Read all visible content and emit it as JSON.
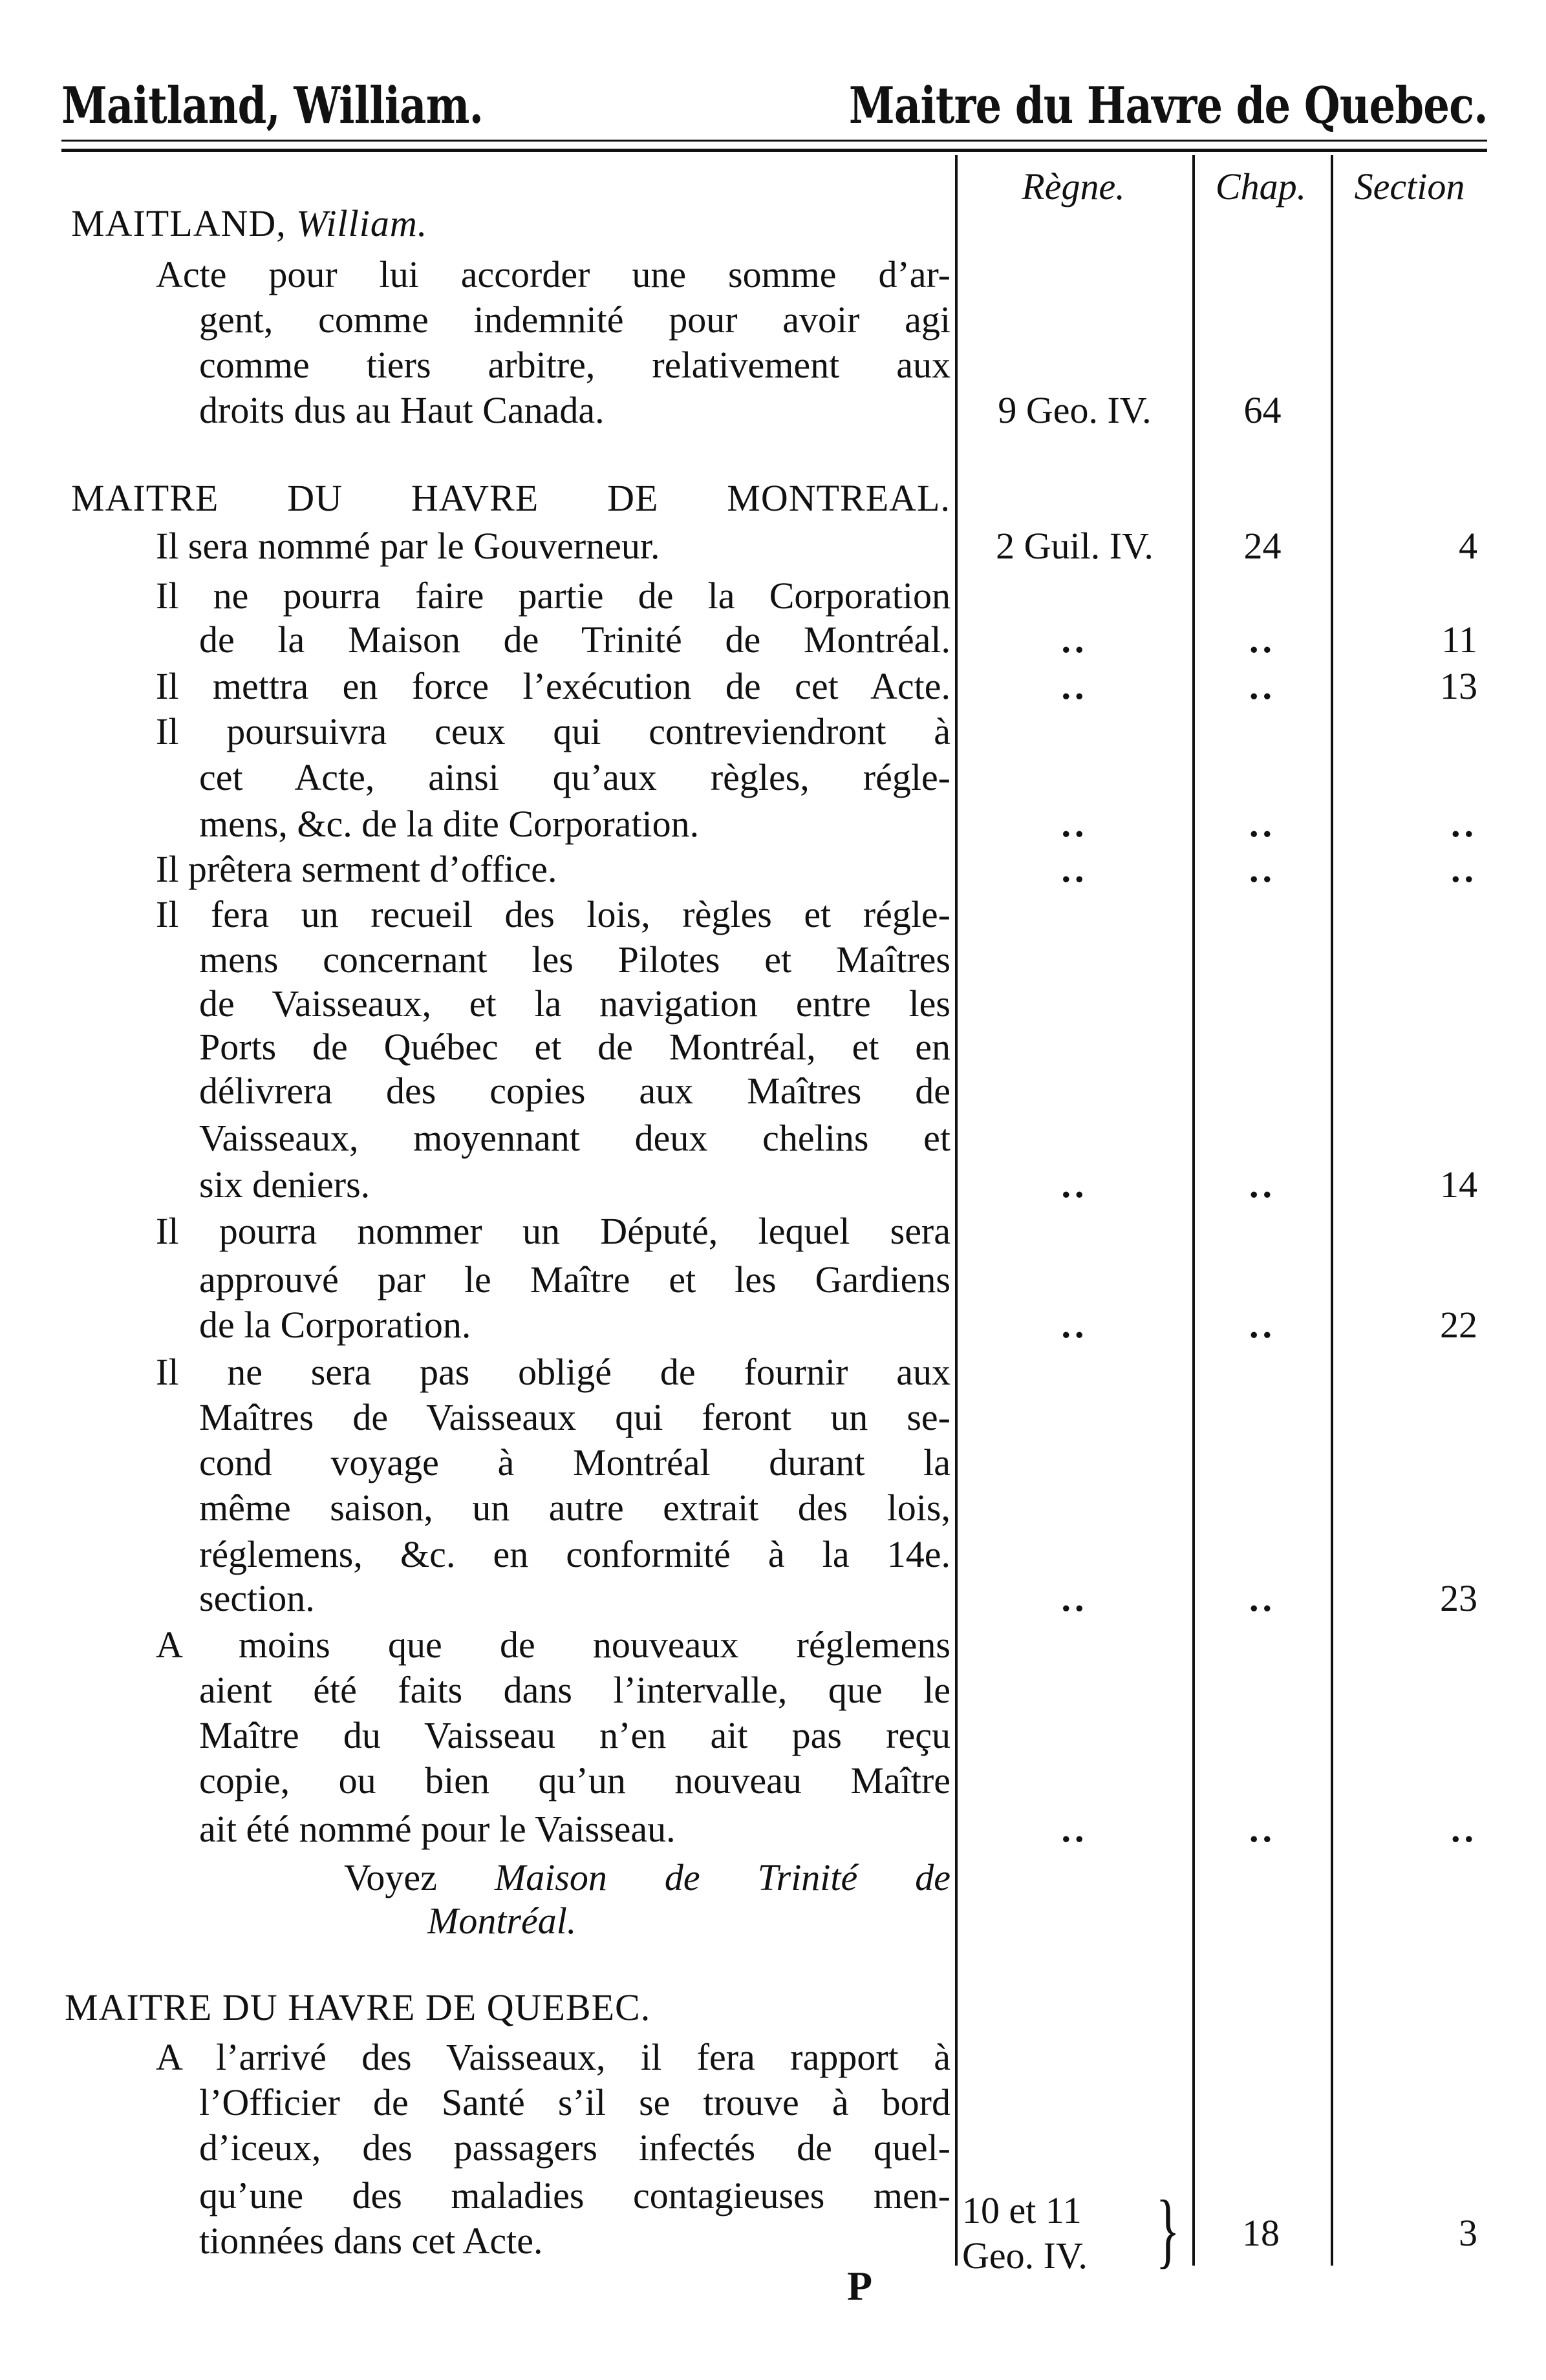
{
  "running_header": {
    "left": "Maitland, William.",
    "right": "Maitre du Havre de Quebec."
  },
  "columns": {
    "regne": "Règne.",
    "chap": "Chap.",
    "section": "Section"
  },
  "lines": [
    {
      "text": "MAITLAND, ",
      "italic": "William."
    },
    {
      "text": "Acte pour lui accorder une somme d’ar-"
    },
    {
      "text": "gent, comme indemnité pour avoir agi"
    },
    {
      "text": "comme tiers arbitre, relativement aux"
    },
    {
      "text": "droits dus au Haut Canada.",
      "regne": "9 Geo. IV.",
      "chap": "64"
    },
    {
      "text": "MAITRE DU HAVRE DE MONTREAL."
    },
    {
      "text": "Il sera nommé par le Gouverneur.",
      "regne": "2 Guil. IV.",
      "chap": "24",
      "section": "4"
    },
    {
      "text": "Il ne pourra faire partie de la Corporation"
    },
    {
      "text": "de la Maison de Trinité de Montréal.",
      "regne": "..",
      "chap": "..",
      "section": "11"
    },
    {
      "text": "Il mettra en force l’exécution de cet Acte.",
      "regne": "..",
      "chap": "..",
      "section": "13"
    },
    {
      "text": "Il poursuivra ceux qui contreviendront à"
    },
    {
      "text": "cet Acte, ainsi qu’aux règles, régle-"
    },
    {
      "text": "mens, &c. de la dite Corporation.",
      "regne": "..",
      "chap": "..",
      "section": ".."
    },
    {
      "text": "Il prêtera serment d’office.",
      "regne": "..",
      "chap": "..",
      "section": ".."
    },
    {
      "text": "Il fera un recueil des lois, règles et régle-"
    },
    {
      "text": "mens concernant les Pilotes et Maîtres"
    },
    {
      "text": "de Vaisseaux, et la navigation entre les"
    },
    {
      "text": "Ports de Québec et de Montréal, et en"
    },
    {
      "text": "délivrera des copies aux Maîtres de"
    },
    {
      "text": "Vaisseaux, moyennant deux chelins et"
    },
    {
      "text": "six deniers.",
      "regne": "..",
      "chap": "..",
      "section": "14"
    },
    {
      "text": "Il pourra nommer un Député, lequel sera"
    },
    {
      "text": "approuvé par le Maître et les Gardiens"
    },
    {
      "text": "de la Corporation.",
      "regne": "..",
      "chap": "..",
      "section": "22"
    },
    {
      "text": "Il ne sera pas obligé de fournir aux"
    },
    {
      "text": "Maîtres de Vaisseaux qui feront un se-"
    },
    {
      "text": "cond voyage à Montréal durant la"
    },
    {
      "text": "même saison, un autre extrait des lois,"
    },
    {
      "text": "réglemens, &c. en conformité à la 14e."
    },
    {
      "text": "section.",
      "regne": "..",
      "chap": "..",
      "section": "23"
    },
    {
      "text": "A moins que de nouveaux réglemens"
    },
    {
      "text": "aient été faits dans l’intervalle, que le"
    },
    {
      "text": "Maître du Vaisseau n’en ait pas reçu"
    },
    {
      "text": "copie, ou bien qu’un nouveau Maître"
    },
    {
      "text": "ait été nommé pour le Vaisseau.",
      "regne": "..",
      "chap": "..",
      "section": ".."
    },
    {
      "text": "Voyez ",
      "italic": "Maison de Trinité de"
    },
    {
      "text": "",
      "italic": "Montréal."
    },
    {
      "text": "MAITRE DU HAVRE DE QUEBEC."
    },
    {
      "text": "A l’arrivé des Vaisseaux, il fera rapport à"
    },
    {
      "text": "l’Officier de Santé s’il se trouve à bord"
    },
    {
      "text": "d’iceux, des passagers infectés de quel-"
    },
    {
      "text": "qu’une des maladies contagieuses men-"
    },
    {
      "text": "tionnées dans cet Acte."
    }
  ],
  "last_entry_refs": {
    "regne_line1": "10 et 11",
    "regne_line2": "Geo. IV.",
    "brace": "}",
    "chap": "18",
    "section": "3"
  },
  "page_signature": "P"
}
